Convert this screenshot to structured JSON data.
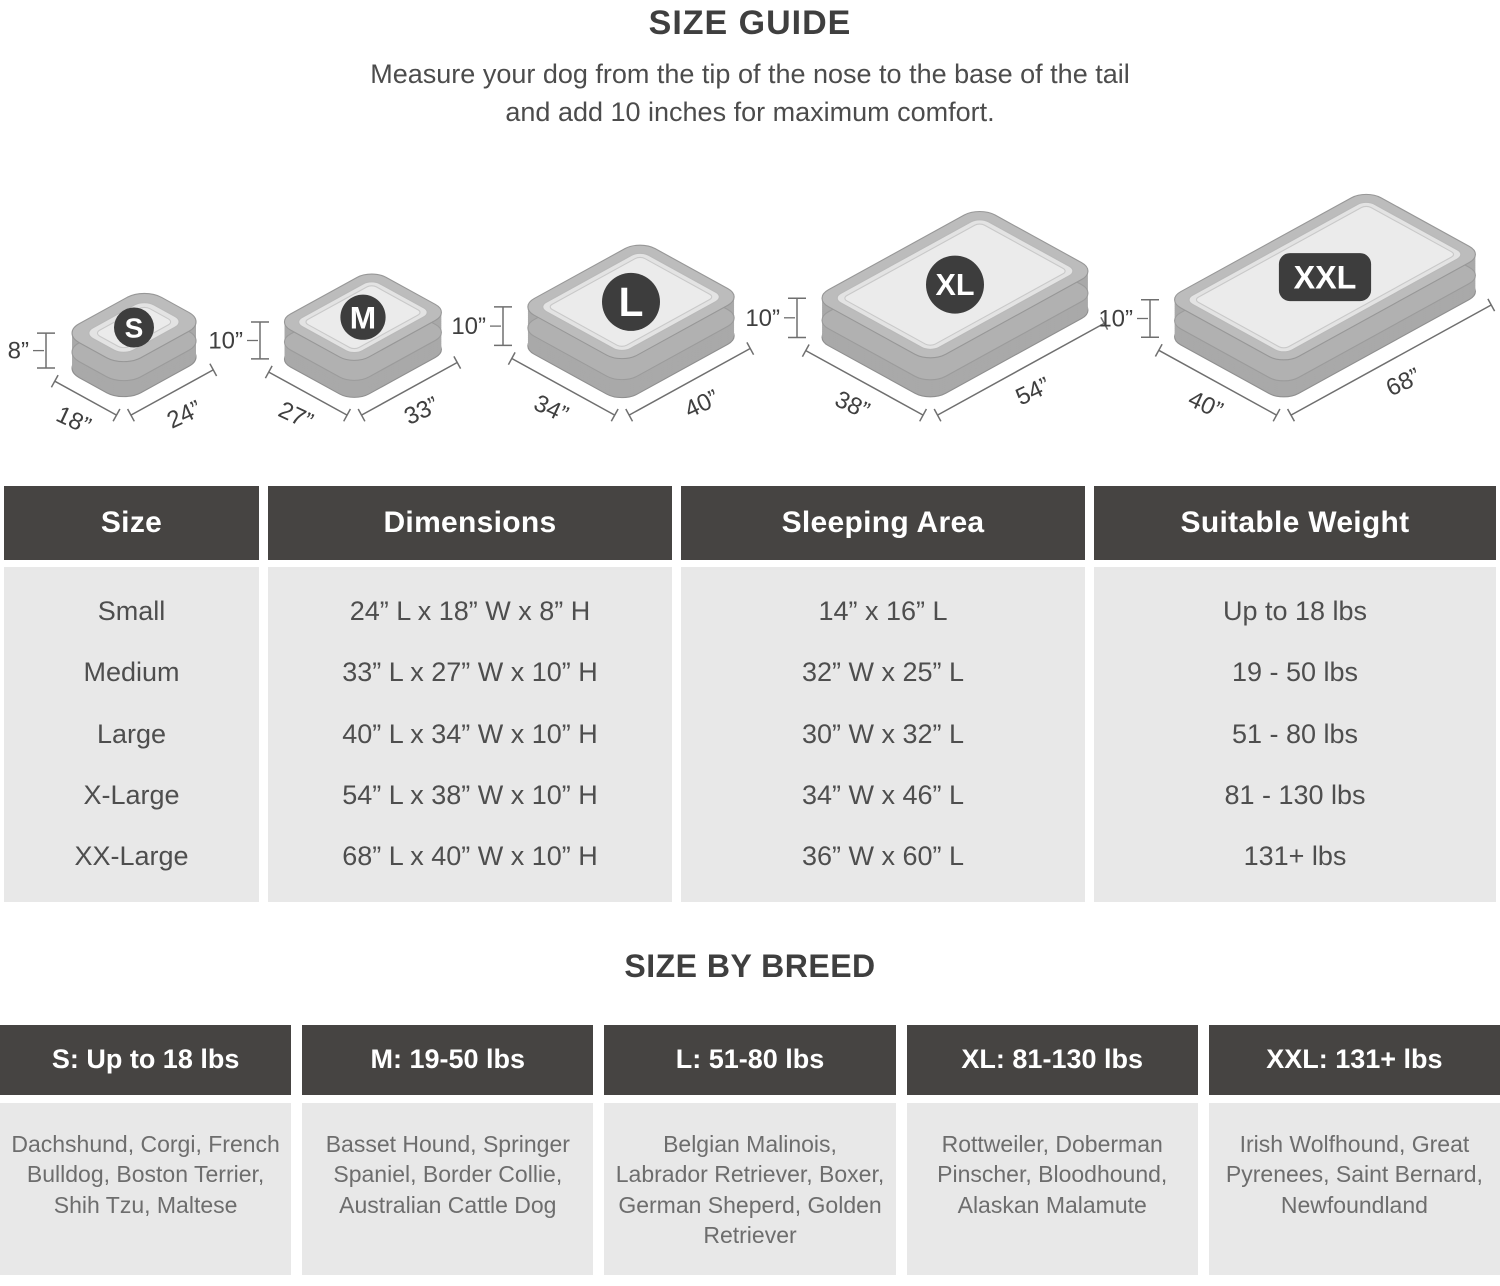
{
  "header": {
    "title": "SIZE GUIDE",
    "subtitle_line1": "Measure your dog from the tip of the nose to the base of the tail",
    "subtitle_line2": "and add 10 inches for maximum comfort."
  },
  "beds": [
    {
      "label": "S",
      "badge": "circle",
      "height_label": "8”",
      "width_label": "18”",
      "length_label": "24”",
      "length_in": 24,
      "width_in": 18,
      "height_in": 8
    },
    {
      "label": "M",
      "badge": "circle",
      "height_label": "10”",
      "width_label": "27”",
      "length_label": "33”",
      "length_in": 33,
      "width_in": 27,
      "height_in": 10
    },
    {
      "label": "L",
      "badge": "circle",
      "height_label": "10”",
      "width_label": "34”",
      "length_label": "40”",
      "length_in": 40,
      "width_in": 34,
      "height_in": 10
    },
    {
      "label": "XL",
      "badge": "circle",
      "height_label": "10”",
      "width_label": "38”",
      "length_label": "54”",
      "length_in": 54,
      "width_in": 38,
      "height_in": 10
    },
    {
      "label": "XXL",
      "badge": "pill",
      "height_label": "10”",
      "width_label": "40”",
      "length_label": "68”",
      "length_in": 68,
      "width_in": 40,
      "height_in": 10
    }
  ],
  "size_table": {
    "columns": [
      "Size",
      "Dimensions",
      "Sleeping Area",
      "Suitable Weight"
    ],
    "rows": [
      [
        "Small",
        "24” L x 18” W x 8” H",
        "14” x 16” L",
        "Up to 18 lbs"
      ],
      [
        "Medium",
        "33” L x 27” W x 10” H",
        "32” W x 25” L",
        "19 - 50 lbs"
      ],
      [
        "Large",
        "40” L x 34” W x 10” H",
        "30” W x 32” L",
        "51 - 80 lbs"
      ],
      [
        "X-Large",
        "54” L x 38” W x 10” H",
        "34” W x 46” L",
        "81 - 130 lbs"
      ],
      [
        "XX-Large",
        "68” L x 40” W x 10” H",
        "36” W x 60” L",
        "131+ lbs"
      ]
    ]
  },
  "breed_section": {
    "title": "SIZE BY BREED",
    "columns": [
      {
        "header": "S: Up to 18 lbs",
        "breeds": "Dachshund, Corgi, French Bulldog, Boston Terrier, Shih Tzu, Maltese"
      },
      {
        "header": "M: 19-50 lbs",
        "breeds": "Basset Hound, Springer Spaniel, Border Collie, Australian Cattle Dog"
      },
      {
        "header": "L: 51-80 lbs",
        "breeds": "Belgian Malinois, Labrador Retriever, Boxer, German Sheperd, Golden Retriever"
      },
      {
        "header": "XL: 81-130 lbs",
        "breeds": "Rottweiler, Doberman Pinscher, Bloodhound, Alaskan Malamute"
      },
      {
        "header": "XXL: 131+ lbs",
        "breeds": "Irish Wolfhound, Great Pyrenees, Saint Bernard, Newfoundland"
      }
    ]
  },
  "colors": {
    "header_bg": "#464442",
    "cell_bg": "#e8e8e8",
    "badge_bg": "#3d3d3d",
    "text_dark": "#3f3f3f",
    "text_mid": "#4e4e4e",
    "text_light": "#6d6d6d"
  }
}
